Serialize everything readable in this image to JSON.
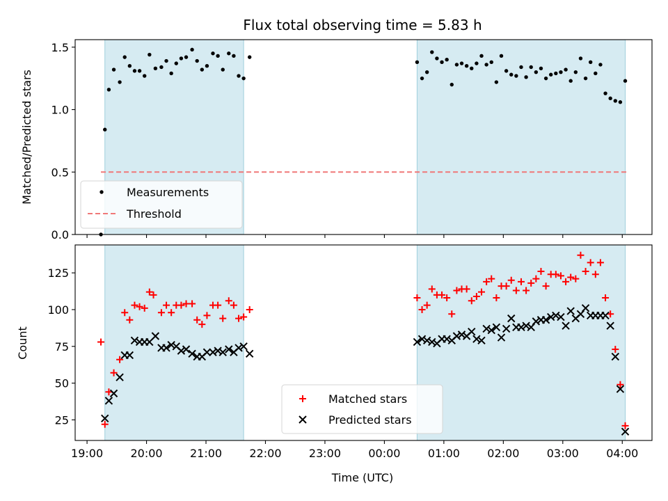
{
  "chart_data": [
    {
      "type": "scatter",
      "title": "Flux total observing time = 5.83 h",
      "ylabel": "Matched/Predicted stars",
      "xlabel": "",
      "ylim": [
        0,
        1.56
      ],
      "yticks": [
        0.0,
        0.5,
        1.0,
        1.5
      ],
      "ytick_labels": [
        "0.0",
        "0.5",
        "1.0",
        "1.5"
      ],
      "xlim": [
        "18:48",
        "04:30"
      ],
      "xticks": [
        "19:00",
        "20:00",
        "21:00",
        "22:00",
        "23:00",
        "00:00",
        "01:00",
        "02:00",
        "03:00",
        "04:00"
      ],
      "shaded_intervals": [
        [
          "19:18",
          "21:38"
        ],
        [
          "00:33",
          "04:03"
        ]
      ],
      "legend_position": "lower-left",
      "legend": [
        {
          "label": "Measurements",
          "kind": "dot",
          "color": "#000000"
        },
        {
          "label": "Threshold",
          "kind": "dash",
          "color": "#f07878"
        }
      ],
      "threshold": {
        "y": 0.5,
        "x_start": "19:14",
        "x_end": "04:05"
      },
      "series": [
        {
          "name": "Measurements",
          "color": "#000000",
          "points": [
            [
              "19:14",
              0.0
            ],
            [
              "19:18",
              0.84
            ],
            [
              "19:22",
              1.16
            ],
            [
              "19:27",
              1.32
            ],
            [
              "19:33",
              1.22
            ],
            [
              "19:38",
              1.42
            ],
            [
              "19:43",
              1.35
            ],
            [
              "19:48",
              1.31
            ],
            [
              "19:53",
              1.31
            ],
            [
              "19:58",
              1.27
            ],
            [
              "20:03",
              1.44
            ],
            [
              "20:09",
              1.33
            ],
            [
              "20:15",
              1.34
            ],
            [
              "20:20",
              1.39
            ],
            [
              "20:25",
              1.29
            ],
            [
              "20:30",
              1.37
            ],
            [
              "20:35",
              1.41
            ],
            [
              "20:40",
              1.42
            ],
            [
              "20:46",
              1.48
            ],
            [
              "20:51",
              1.39
            ],
            [
              "20:56",
              1.32
            ],
            [
              "21:01",
              1.35
            ],
            [
              "21:07",
              1.45
            ],
            [
              "21:12",
              1.43
            ],
            [
              "21:17",
              1.32
            ],
            [
              "21:23",
              1.45
            ],
            [
              "21:28",
              1.43
            ],
            [
              "21:33",
              1.27
            ],
            [
              "21:38",
              1.25
            ],
            [
              "21:44",
              1.42
            ],
            [
              "00:33",
              1.38
            ],
            [
              "00:38",
              1.25
            ],
            [
              "00:43",
              1.3
            ],
            [
              "00:48",
              1.46
            ],
            [
              "00:53",
              1.41
            ],
            [
              "00:58",
              1.38
            ],
            [
              "01:03",
              1.4
            ],
            [
              "01:08",
              1.2
            ],
            [
              "01:13",
              1.36
            ],
            [
              "01:18",
              1.37
            ],
            [
              "01:23",
              1.35
            ],
            [
              "01:28",
              1.33
            ],
            [
              "01:33",
              1.37
            ],
            [
              "01:38",
              1.43
            ],
            [
              "01:43",
              1.36
            ],
            [
              "01:48",
              1.38
            ],
            [
              "01:53",
              1.22
            ],
            [
              "01:58",
              1.43
            ],
            [
              "02:03",
              1.31
            ],
            [
              "02:08",
              1.28
            ],
            [
              "02:13",
              1.27
            ],
            [
              "02:18",
              1.34
            ],
            [
              "02:23",
              1.26
            ],
            [
              "02:28",
              1.34
            ],
            [
              "02:33",
              1.3
            ],
            [
              "02:38",
              1.33
            ],
            [
              "02:43",
              1.25
            ],
            [
              "02:48",
              1.28
            ],
            [
              "02:53",
              1.29
            ],
            [
              "02:58",
              1.3
            ],
            [
              "03:03",
              1.32
            ],
            [
              "03:08",
              1.23
            ],
            [
              "03:13",
              1.3
            ],
            [
              "03:18",
              1.41
            ],
            [
              "03:23",
              1.25
            ],
            [
              "03:28",
              1.38
            ],
            [
              "03:33",
              1.29
            ],
            [
              "03:38",
              1.36
            ],
            [
              "03:43",
              1.13
            ],
            [
              "03:48",
              1.09
            ],
            [
              "03:53",
              1.07
            ],
            [
              "03:58",
              1.06
            ],
            [
              "04:03",
              1.23
            ]
          ]
        }
      ]
    },
    {
      "type": "scatter",
      "title": "",
      "ylabel": "Count",
      "xlabel": "Time (UTC)",
      "ylim": [
        11,
        144
      ],
      "yticks": [
        25,
        50,
        75,
        100,
        125
      ],
      "ytick_labels": [
        "25",
        "50",
        "75",
        "100",
        "125"
      ],
      "xlim": [
        "18:48",
        "04:30"
      ],
      "xticks": [
        "19:00",
        "20:00",
        "21:00",
        "22:00",
        "23:00",
        "00:00",
        "01:00",
        "02:00",
        "03:00",
        "04:00"
      ],
      "xtick_labels": [
        "19:00",
        "20:00",
        "21:00",
        "22:00",
        "23:00",
        "00:00",
        "01:00",
        "02:00",
        "03:00",
        "04:00"
      ],
      "shaded_intervals": [
        [
          "19:18",
          "21:38"
        ],
        [
          "00:33",
          "04:03"
        ]
      ],
      "legend_position": "lower-center",
      "legend": [
        {
          "label": "Matched stars",
          "kind": "plus",
          "color": "#ff0000"
        },
        {
          "label": "Predicted stars",
          "kind": "cross",
          "color": "#000000"
        }
      ],
      "series": [
        {
          "name": "Matched stars",
          "marker": "plus",
          "color": "#ff0000",
          "points": [
            [
              "19:14",
              78
            ],
            [
              "19:18",
              22
            ],
            [
              "19:22",
              44
            ],
            [
              "19:27",
              57
            ],
            [
              "19:33",
              66
            ],
            [
              "19:38",
              98
            ],
            [
              "19:43",
              93
            ],
            [
              "19:48",
              103
            ],
            [
              "19:53",
              102
            ],
            [
              "19:58",
              101
            ],
            [
              "20:03",
              112
            ],
            [
              "20:07",
              110
            ],
            [
              "20:15",
              98
            ],
            [
              "20:20",
              103
            ],
            [
              "20:25",
              98
            ],
            [
              "20:30",
              103
            ],
            [
              "20:35",
              103
            ],
            [
              "20:40",
              104
            ],
            [
              "20:46",
              104
            ],
            [
              "20:51",
              93
            ],
            [
              "20:56",
              90
            ],
            [
              "21:01",
              96
            ],
            [
              "21:07",
              103
            ],
            [
              "21:12",
              103
            ],
            [
              "21:17",
              94
            ],
            [
              "21:23",
              106
            ],
            [
              "21:28",
              103
            ],
            [
              "21:33",
              94
            ],
            [
              "21:38",
              95
            ],
            [
              "21:44",
              100
            ],
            [
              "00:33",
              108
            ],
            [
              "00:38",
              100
            ],
            [
              "00:43",
              103
            ],
            [
              "00:48",
              114
            ],
            [
              "00:53",
              110
            ],
            [
              "00:58",
              110
            ],
            [
              "01:03",
              108
            ],
            [
              "01:08",
              97
            ],
            [
              "01:13",
              113
            ],
            [
              "01:18",
              114
            ],
            [
              "01:23",
              114
            ],
            [
              "01:28",
              106
            ],
            [
              "01:33",
              109
            ],
            [
              "01:38",
              112
            ],
            [
              "01:43",
              119
            ],
            [
              "01:48",
              121
            ],
            [
              "01:53",
              108
            ],
            [
              "01:58",
              116
            ],
            [
              "02:03",
              116
            ],
            [
              "02:08",
              120
            ],
            [
              "02:13",
              113
            ],
            [
              "02:18",
              119
            ],
            [
              "02:23",
              113
            ],
            [
              "02:28",
              118
            ],
            [
              "02:33",
              121
            ],
            [
              "02:38",
              126
            ],
            [
              "02:43",
              116
            ],
            [
              "02:48",
              124
            ],
            [
              "02:53",
              124
            ],
            [
              "02:58",
              123
            ],
            [
              "03:03",
              119
            ],
            [
              "03:08",
              122
            ],
            [
              "03:13",
              121
            ],
            [
              "03:18",
              137
            ],
            [
              "03:23",
              126
            ],
            [
              "03:28",
              132
            ],
            [
              "03:33",
              124
            ],
            [
              "03:38",
              132
            ],
            [
              "03:43",
              108
            ],
            [
              "03:48",
              97
            ],
            [
              "03:53",
              73
            ],
            [
              "03:58",
              49
            ],
            [
              "04:03",
              21
            ]
          ]
        },
        {
          "name": "Predicted stars",
          "marker": "cross",
          "color": "#000000",
          "points": [
            [
              "19:18",
              26
            ],
            [
              "19:22",
              38
            ],
            [
              "19:27",
              43
            ],
            [
              "19:33",
              54
            ],
            [
              "19:38",
              69
            ],
            [
              "19:43",
              69
            ],
            [
              "19:48",
              79
            ],
            [
              "19:53",
              78
            ],
            [
              "19:58",
              78
            ],
            [
              "20:03",
              78
            ],
            [
              "20:09",
              82
            ],
            [
              "20:15",
              74
            ],
            [
              "20:20",
              74
            ],
            [
              "20:25",
              76
            ],
            [
              "20:30",
              75
            ],
            [
              "20:35",
              72
            ],
            [
              "20:40",
              73
            ],
            [
              "20:46",
              70
            ],
            [
              "20:51",
              68
            ],
            [
              "20:56",
              68
            ],
            [
              "21:01",
              71
            ],
            [
              "21:07",
              71
            ],
            [
              "21:12",
              72
            ],
            [
              "21:17",
              71
            ],
            [
              "21:23",
              73
            ],
            [
              "21:28",
              71
            ],
            [
              "21:33",
              74
            ],
            [
              "21:38",
              75
            ],
            [
              "21:44",
              70
            ],
            [
              "00:33",
              78
            ],
            [
              "00:38",
              80
            ],
            [
              "00:43",
              79
            ],
            [
              "00:48",
              78
            ],
            [
              "00:53",
              77
            ],
            [
              "00:58",
              80
            ],
            [
              "01:03",
              80
            ],
            [
              "01:08",
              79
            ],
            [
              "01:13",
              82
            ],
            [
              "01:18",
              83
            ],
            [
              "01:23",
              82
            ],
            [
              "01:28",
              85
            ],
            [
              "01:33",
              80
            ],
            [
              "01:38",
              79
            ],
            [
              "01:43",
              87
            ],
            [
              "01:48",
              86
            ],
            [
              "01:53",
              88
            ],
            [
              "01:58",
              81
            ],
            [
              "02:03",
              87
            ],
            [
              "02:08",
              94
            ],
            [
              "02:13",
              88
            ],
            [
              "02:18",
              88
            ],
            [
              "02:23",
              89
            ],
            [
              "02:28",
              88
            ],
            [
              "02:33",
              92
            ],
            [
              "02:38",
              93
            ],
            [
              "02:43",
              93
            ],
            [
              "02:48",
              95
            ],
            [
              "02:53",
              96
            ],
            [
              "02:58",
              95
            ],
            [
              "03:03",
              89
            ],
            [
              "03:08",
              99
            ],
            [
              "03:13",
              94
            ],
            [
              "03:18",
              97
            ],
            [
              "03:23",
              101
            ],
            [
              "03:28",
              96
            ],
            [
              "03:33",
              96
            ],
            [
              "03:38",
              96
            ],
            [
              "03:43",
              96
            ],
            [
              "03:48",
              89
            ],
            [
              "03:53",
              68
            ],
            [
              "03:58",
              46
            ],
            [
              "04:03",
              17
            ]
          ]
        }
      ]
    }
  ]
}
